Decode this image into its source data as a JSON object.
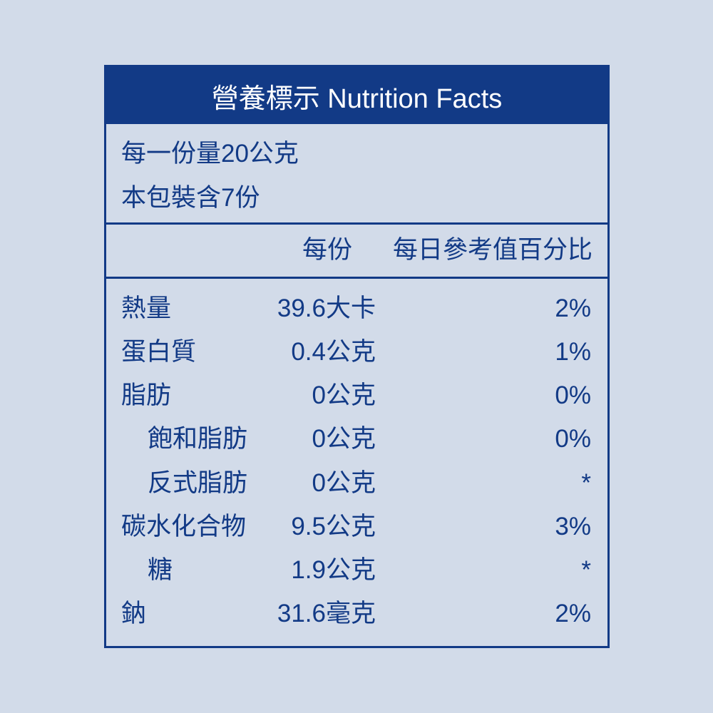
{
  "header": {
    "title": "營養標示 Nutrition Facts"
  },
  "serving": {
    "size": "每一份量20公克",
    "servings_per_package": "本包裝含7份"
  },
  "columns": {
    "per_serving": "每份",
    "daily_value": "每日參考值百分比"
  },
  "nutrients": [
    {
      "name": "熱量",
      "amount": "39.6大卡",
      "daily_value": "2%"
    },
    {
      "name": "蛋白質",
      "amount": "0.4公克",
      "daily_value": "1%"
    },
    {
      "name": "脂肪",
      "amount": "0公克",
      "daily_value": "0%"
    },
    {
      "name": "飽和脂肪",
      "amount": "0公克",
      "daily_value": "0%"
    },
    {
      "name": "反式脂肪",
      "amount": "0公克",
      "daily_value": "*"
    },
    {
      "name": "碳水化合物",
      "amount": "9.5公克",
      "daily_value": "3%"
    },
    {
      "name": "糖",
      "amount": "1.9公克",
      "daily_value": "*"
    },
    {
      "name": "鈉",
      "amount": "31.6毫克",
      "daily_value": "2%"
    }
  ],
  "colors": {
    "background": "#d2dbe9",
    "primary": "#123a86",
    "header_text": "#ffffff"
  }
}
